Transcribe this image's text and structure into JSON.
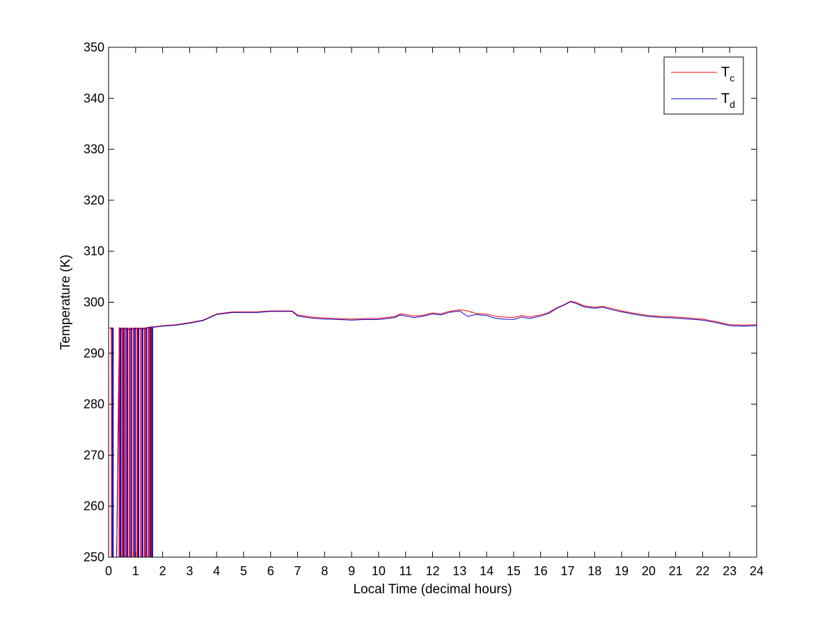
{
  "chart_data": {
    "type": "line",
    "xlabel": "Local Time (decimal hours)",
    "ylabel": "Temperature (K)",
    "xlim": [
      0,
      24
    ],
    "ylim": [
      250,
      350
    ],
    "xticks": [
      0,
      1,
      2,
      3,
      4,
      5,
      6,
      7,
      8,
      9,
      10,
      11,
      12,
      13,
      14,
      15,
      16,
      17,
      18,
      19,
      20,
      21,
      22,
      23,
      24
    ],
    "yticks": [
      250,
      260,
      270,
      280,
      290,
      300,
      310,
      320,
      330,
      340,
      350
    ],
    "grid": false,
    "legend_position": "top-right",
    "series": [
      {
        "name": "Tc",
        "legend_main": "T",
        "legend_sub": "c",
        "color": "#ff0000",
        "x": [
          0.05,
          0.1,
          0.15,
          0.2,
          0.3,
          0.4,
          0.5,
          0.6,
          0.7,
          0.8,
          0.9,
          1.0,
          1.1,
          1.2,
          1.3,
          1.4,
          1.5,
          1.6,
          1.7,
          2.0,
          2.5,
          3.0,
          3.5,
          3.8,
          4.0,
          4.3,
          4.6,
          5.0,
          5.5,
          6.0,
          6.5,
          6.8,
          7.0,
          7.5,
          8.0,
          8.5,
          9.0,
          9.5,
          10.0,
          10.3,
          10.6,
          10.8,
          11.0,
          11.3,
          11.6,
          12.0,
          12.3,
          12.6,
          13.0,
          13.3,
          13.6,
          14.0,
          14.3,
          14.6,
          15.0,
          15.3,
          15.6,
          16.0,
          16.3,
          16.6,
          16.9,
          17.1,
          17.3,
          17.6,
          18.0,
          18.3,
          18.6,
          19.0,
          19.5,
          20.0,
          20.5,
          21.0,
          21.5,
          22.0,
          22.5,
          23.0,
          23.5,
          24.0
        ],
        "y": [
          295,
          295,
          250,
          250,
          250,
          295,
          294.8,
          294.9,
          294.7,
          294.8,
          294.8,
          294.9,
          294.8,
          294.9,
          294.9,
          295,
          295.1,
          295.2,
          295.2,
          295.4,
          295.6,
          296,
          296.5,
          297.2,
          297.7,
          297.9,
          298.1,
          298.1,
          298.1,
          298.3,
          298.3,
          298.3,
          297.5,
          297.1,
          296.9,
          296.8,
          296.7,
          296.8,
          296.8,
          297,
          297.2,
          297.7,
          297.6,
          297.3,
          297.4,
          297.9,
          297.7,
          298.2,
          298.5,
          298.3,
          297.8,
          297.7,
          297.3,
          297.1,
          297,
          297.4,
          297.1,
          297.5,
          298,
          298.9,
          299.6,
          300.2,
          300,
          299.3,
          299,
          299.2,
          298.8,
          298.3,
          297.8,
          297.4,
          297.2,
          297.1,
          296.9,
          296.7,
          296.2,
          295.6,
          295.5,
          295.6
        ]
      },
      {
        "name": "Td",
        "legend_main": "T",
        "legend_sub": "d",
        "color": "#0000cc",
        "x": [
          0.05,
          0.1,
          0.15,
          0.2,
          0.3,
          0.4,
          0.5,
          0.6,
          0.7,
          0.8,
          0.9,
          1.0,
          1.1,
          1.2,
          1.3,
          1.4,
          1.5,
          1.6,
          1.7,
          2.0,
          2.5,
          3.0,
          3.5,
          3.8,
          4.0,
          4.3,
          4.6,
          5.0,
          5.5,
          6.0,
          6.5,
          6.8,
          7.0,
          7.5,
          8.0,
          8.5,
          9.0,
          9.5,
          10.0,
          10.3,
          10.6,
          10.8,
          11.0,
          11.3,
          11.6,
          12.0,
          12.3,
          12.6,
          13.0,
          13.3,
          13.6,
          14.0,
          14.3,
          14.6,
          15.0,
          15.3,
          15.6,
          16.0,
          16.3,
          16.6,
          16.9,
          17.1,
          17.3,
          17.6,
          18.0,
          18.3,
          18.6,
          19.0,
          19.5,
          20.0,
          20.5,
          21.0,
          21.5,
          22.0,
          22.5,
          23.0,
          23.5,
          24.0
        ],
        "y": [
          294.8,
          294.9,
          250,
          250,
          250,
          294.9,
          294.7,
          294.8,
          294.6,
          294.7,
          294.7,
          294.8,
          294.7,
          294.8,
          294.8,
          294.9,
          295,
          295.1,
          295.1,
          295.3,
          295.5,
          295.9,
          296.4,
          297.1,
          297.6,
          297.8,
          298,
          298,
          298,
          298.2,
          298.2,
          298.2,
          297.3,
          296.9,
          296.7,
          296.6,
          296.5,
          296.6,
          296.6,
          296.8,
          297,
          297.5,
          297.3,
          297,
          297.2,
          297.7,
          297.5,
          298,
          298.3,
          297.2,
          297.6,
          297.4,
          296.9,
          296.7,
          296.6,
          297.1,
          296.8,
          297.3,
          297.8,
          298.8,
          299.5,
          300.1,
          299.8,
          299.1,
          298.8,
          299,
          298.6,
          298.1,
          297.6,
          297.2,
          297,
          296.9,
          296.7,
          296.5,
          296,
          295.4,
          295.3,
          295.4
        ]
      }
    ],
    "spikes": [
      {
        "x": 0.12,
        "color": "#ff0000"
      },
      {
        "x": 0.16,
        "color": "#0000cc"
      },
      {
        "x": 0.4,
        "color": "#ff0000"
      },
      {
        "x": 0.45,
        "color": "#0000cc"
      },
      {
        "x": 0.52,
        "color": "#ff0000"
      },
      {
        "x": 0.57,
        "color": "#0000cc"
      },
      {
        "x": 0.64,
        "color": "#ff0000"
      },
      {
        "x": 0.7,
        "color": "#0000cc"
      },
      {
        "x": 0.78,
        "color": "#ff0000"
      },
      {
        "x": 0.84,
        "color": "#0000cc"
      },
      {
        "x": 0.92,
        "color": "#ff0000"
      },
      {
        "x": 0.98,
        "color": "#0000cc"
      },
      {
        "x": 1.06,
        "color": "#ff0000"
      },
      {
        "x": 1.11,
        "color": "#0000cc"
      },
      {
        "x": 1.2,
        "color": "#ff0000"
      },
      {
        "x": 1.26,
        "color": "#0000cc"
      },
      {
        "x": 1.34,
        "color": "#ff0000"
      },
      {
        "x": 1.4,
        "color": "#0000cc"
      },
      {
        "x": 1.48,
        "color": "#ff0000"
      },
      {
        "x": 1.54,
        "color": "#0000cc"
      },
      {
        "x": 1.58,
        "color": "#ff0000"
      },
      {
        "x": 1.62,
        "color": "#0000cc"
      }
    ]
  }
}
